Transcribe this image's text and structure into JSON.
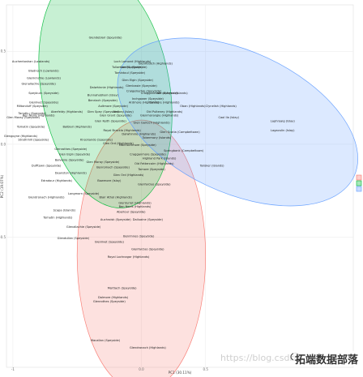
{
  "chart_data": {
    "type": "scatter",
    "xlabel": "PC1 (30.11%)",
    "ylabel": "PC2 (19.07%)",
    "xlim": [
      -1.05,
      1.65
    ],
    "ylim": [
      -1.2,
      0.75
    ],
    "x_ticks": [
      {
        "value": -1.0,
        "label": "-1"
      },
      {
        "value": 0.0,
        "label": "0.0"
      },
      {
        "value": 0.5,
        "label": "0.5"
      }
    ],
    "y_ticks": [
      {
        "value": 0.5,
        "label": "0.5"
      },
      {
        "value": 0.0,
        "label": "0.0"
      },
      {
        "value": -0.5,
        "label": "-0.5"
      }
    ],
    "grid": true,
    "legend_position": "right",
    "clusters": [
      {
        "id": "1",
        "color": "#F8766D",
        "fill": "#F8766D"
      },
      {
        "id": "2",
        "color": "#00BA38",
        "fill": "#00BA38"
      },
      {
        "id": "3",
        "color": "#619CFF",
        "fill": "#619CFF"
      }
    ],
    "ellipses": [
      {
        "cluster": "1",
        "cx": 0.0,
        "cy": -0.6,
        "rx": 0.5,
        "ry": 0.73,
        "angle": 0
      },
      {
        "cluster": "2",
        "cx": -0.28,
        "cy": 0.3,
        "rx": 0.5,
        "ry": 0.65,
        "angle": -10
      },
      {
        "cluster": "3",
        "cx": 0.75,
        "cy": 0.12,
        "rx": 1.0,
        "ry": 0.38,
        "angle": 25
      }
    ],
    "points": [
      {
        "name": "Glendeblair (Speyside)",
        "x": -0.28,
        "y": 0.57,
        "cluster": "2"
      },
      {
        "name": "Auchentoshan (Lowlands)",
        "x": -0.86,
        "y": 0.44,
        "cluster": "2"
      },
      {
        "name": "Loch Lomond (Highlands)",
        "x": -0.07,
        "y": 0.44,
        "cluster": "2"
      },
      {
        "name": "Glenfiddich (Highlands)",
        "x": 0.11,
        "y": 0.43,
        "cluster": "3"
      },
      {
        "name": "Tullamore (Speyside)",
        "x": -0.11,
        "y": 0.41,
        "cluster": "2"
      },
      {
        "name": "Bladnoch (Lowlands)",
        "x": -0.76,
        "y": 0.39,
        "cluster": "2"
      },
      {
        "name": "Cardhu (Speyside)",
        "x": -0.06,
        "y": 0.41,
        "cluster": "2"
      },
      {
        "name": "Tomintoul (Speyside)",
        "x": -0.09,
        "y": 0.38,
        "cluster": "2"
      },
      {
        "name": "Glenkinchie (Lowlands)",
        "x": -0.76,
        "y": 0.35,
        "cluster": "2"
      },
      {
        "name": "Glen Elgin (Speyside)",
        "x": -0.03,
        "y": 0.34,
        "cluster": "2"
      },
      {
        "name": "Glenallachie (Speyside)",
        "x": -0.8,
        "y": 0.32,
        "cluster": "2"
      },
      {
        "name": "Glenlossie (Speyside)",
        "x": 0.0,
        "y": 0.31,
        "cluster": "2"
      },
      {
        "name": "Dalwhinnie (Highlands)",
        "x": -0.27,
        "y": 0.3,
        "cluster": "2"
      },
      {
        "name": "Craigellachie (Speyside)",
        "x": 0.02,
        "y": 0.28,
        "cluster": "2"
      },
      {
        "name": "Isle of Arran (Islands)",
        "x": 0.24,
        "y": 0.27,
        "cluster": "3"
      },
      {
        "name": "Speyburn (Speyside)",
        "x": -0.76,
        "y": 0.27,
        "cluster": "2"
      },
      {
        "name": "Craigganmore (Speyside)",
        "x": 0.14,
        "y": 0.27,
        "cluster": "2"
      },
      {
        "name": "Bunnahabhain (Islay)",
        "x": -0.3,
        "y": 0.26,
        "cluster": "2"
      },
      {
        "name": "Benriach (Speyside)",
        "x": -0.3,
        "y": 0.23,
        "cluster": "2"
      },
      {
        "name": "Glenlivet (Speyside)",
        "x": -0.76,
        "y": 0.22,
        "cluster": "2"
      },
      {
        "name": "Inchgower (Speyside)",
        "x": 0.05,
        "y": 0.24,
        "cluster": "2"
      },
      {
        "name": "Ardmore (Highlands)",
        "x": 0.02,
        "y": 0.22,
        "cluster": "2"
      },
      {
        "name": "Dalmore (Highlands)",
        "x": 0.18,
        "y": 0.22,
        "cluster": "3"
      },
      {
        "name": "Miltonduff (Speyside)",
        "x": -0.85,
        "y": 0.2,
        "cluster": "2"
      },
      {
        "name": "Aultmore (Speyside)",
        "x": -0.22,
        "y": 0.2,
        "cluster": "2"
      },
      {
        "name": "Oban (Highlands)",
        "x": 0.4,
        "y": 0.2,
        "cluster": "3"
      },
      {
        "name": "Clynelish (Highlands)",
        "x": 0.62,
        "y": 0.2,
        "cluster": "3"
      },
      {
        "name": "Aberfeldy (Highlands)",
        "x": -0.58,
        "y": 0.17,
        "cluster": "2"
      },
      {
        "name": "Tamdhu (Speyside)",
        "x": -0.85,
        "y": 0.16,
        "cluster": "2"
      },
      {
        "name": "Glen Spey (Speyside)",
        "x": -0.3,
        "y": 0.17,
        "cluster": "2"
      },
      {
        "name": "Ardbeg (Islay)",
        "x": -0.14,
        "y": 0.17,
        "cluster": "2"
      },
      {
        "name": "Old Pulteney (Highlands)",
        "x": 0.18,
        "y": 0.17,
        "cluster": "3"
      },
      {
        "name": "Ben Nevis (Highlands)",
        "x": -0.8,
        "y": 0.15,
        "cluster": "2"
      },
      {
        "name": "Glen Grant (Speyside)",
        "x": -0.2,
        "y": 0.15,
        "cluster": "2"
      },
      {
        "name": "Glenmorangie (Highlands)",
        "x": 0.14,
        "y": 0.15,
        "cluster": "3"
      },
      {
        "name": "Caol Ila (Islay)",
        "x": 0.68,
        "y": 0.14,
        "cluster": "3"
      },
      {
        "name": "Glen Moray (Speyside)",
        "x": -0.92,
        "y": 0.14,
        "cluster": "2"
      },
      {
        "name": "Glen Keith (Speyside)",
        "x": -0.24,
        "y": 0.12,
        "cluster": "2"
      },
      {
        "name": "Glen Garioch (Highlands)",
        "x": 0.08,
        "y": 0.11,
        "cluster": "3"
      },
      {
        "name": "Tomatin (Speyside)",
        "x": -0.86,
        "y": 0.09,
        "cluster": "2"
      },
      {
        "name": "Balblair (Highlands)",
        "x": -0.5,
        "y": 0.09,
        "cluster": "2"
      },
      {
        "name": "Laphroaig (Islay)",
        "x": 1.1,
        "y": 0.12,
        "cluster": "3"
      },
      {
        "name": "Lagavulin (Islay)",
        "x": 1.1,
        "y": 0.07,
        "cluster": "3"
      },
      {
        "name": "Royal Brackla (Highlands)",
        "x": -0.15,
        "y": 0.07,
        "cluster": "2"
      },
      {
        "name": "Glengoyne (Highlands)",
        "x": -0.94,
        "y": 0.04,
        "cluster": "2"
      },
      {
        "name": "Dalwhinnie (Highlands)",
        "x": -0.02,
        "y": 0.05,
        "cluster": "3"
      },
      {
        "name": "Glen Scotia (Campbeltown)",
        "x": 0.3,
        "y": 0.06,
        "cluster": "3"
      },
      {
        "name": "Tobermory (Islands)",
        "x": 0.12,
        "y": 0.03,
        "cluster": "3"
      },
      {
        "name": "Strathmill (Speyside)",
        "x": -0.84,
        "y": 0.02,
        "cluster": "2"
      },
      {
        "name": "Knockando (Speyside)",
        "x": -0.35,
        "y": 0.02,
        "cluster": "2"
      },
      {
        "name": "Glen Ord (Highlands)",
        "x": -0.18,
        "y": 0.0,
        "cluster": "2"
      },
      {
        "name": "Mannochmore (Speyside)",
        "x": -0.03,
        "y": -0.01,
        "cluster": "1"
      },
      {
        "name": "Glenrothes (Speyside)",
        "x": -0.55,
        "y": -0.03,
        "cluster": "2"
      },
      {
        "name": "Springbank (Campbeltown)",
        "x": 0.33,
        "y": -0.04,
        "cluster": "3"
      },
      {
        "name": "Glen Elgin (Speyside)",
        "x": -0.52,
        "y": -0.06,
        "cluster": "1"
      },
      {
        "name": "Cragganmore (Speyside)",
        "x": 0.05,
        "y": -0.06,
        "cluster": "1"
      },
      {
        "name": "Highland Park (Islands)",
        "x": 0.14,
        "y": -0.08,
        "cluster": "3"
      },
      {
        "name": "Balvenie (Speyside)",
        "x": -0.56,
        "y": -0.09,
        "cluster": "1"
      },
      {
        "name": "Glen Moray (Speyside)",
        "x": -0.3,
        "y": -0.1,
        "cluster": "1"
      },
      {
        "name": "Old Fettercairn (Highlands)",
        "x": 0.1,
        "y": -0.11,
        "cluster": "1"
      },
      {
        "name": "Dufftown (Speyside)",
        "x": -0.74,
        "y": -0.12,
        "cluster": "1"
      },
      {
        "name": "Benromach (Speyside)",
        "x": -0.22,
        "y": -0.13,
        "cluster": "1"
      },
      {
        "name": "Talisker (Islands)",
        "x": 0.55,
        "y": -0.12,
        "cluster": "3"
      },
      {
        "name": "Tomore (Speyside)",
        "x": 0.08,
        "y": -0.14,
        "cluster": "1"
      },
      {
        "name": "Deanston (Highlands)",
        "x": -0.55,
        "y": -0.16,
        "cluster": "1"
      },
      {
        "name": "Glen Ord (Highlands)",
        "x": -0.1,
        "y": -0.17,
        "cluster": "1"
      },
      {
        "name": "Edradour (Highlands)",
        "x": -0.66,
        "y": -0.2,
        "cluster": "1"
      },
      {
        "name": "Bowmore (Islay)",
        "x": -0.25,
        "y": -0.2,
        "cluster": "1"
      },
      {
        "name": "Glenfarclas (Speyside)",
        "x": 0.1,
        "y": -0.22,
        "cluster": "1"
      },
      {
        "name": "Longmorn (Speyside)",
        "x": -0.45,
        "y": -0.27,
        "cluster": "1"
      },
      {
        "name": "Glendronach (Highlands)",
        "x": -0.74,
        "y": -0.29,
        "cluster": "1"
      },
      {
        "name": "Blair Athol (Highlands)",
        "x": -0.2,
        "y": -0.29,
        "cluster": "1"
      },
      {
        "name": "Glenturret (Highlands)",
        "x": -0.05,
        "y": -0.32,
        "cluster": "1"
      },
      {
        "name": "Ben Nevis (Highlands)",
        "x": -0.05,
        "y": -0.34,
        "cluster": "1"
      },
      {
        "name": "Scapa (Islands)",
        "x": -0.6,
        "y": -0.36,
        "cluster": "1"
      },
      {
        "name": "Aberlour (Speyside)",
        "x": -0.08,
        "y": -0.37,
        "cluster": "1"
      },
      {
        "name": "Tomatin (Highlands)",
        "x": -0.65,
        "y": -0.4,
        "cluster": "1"
      },
      {
        "name": "Auchroisk (Speyside)",
        "x": -0.2,
        "y": -0.41,
        "cluster": "1"
      },
      {
        "name": "Dailuaine (Speyside)",
        "x": 0.05,
        "y": -0.41,
        "cluster": "1"
      },
      {
        "name": "Glenallachie (Speyside)",
        "x": -0.45,
        "y": -0.45,
        "cluster": "1"
      },
      {
        "name": "Benrinnes (Speyside)",
        "x": -0.02,
        "y": -0.5,
        "cluster": "1"
      },
      {
        "name": "Glendullan (Speyside)",
        "x": -0.53,
        "y": -0.51,
        "cluster": "1"
      },
      {
        "name": "Glenlivet (Speyside)",
        "x": -0.25,
        "y": -0.53,
        "cluster": "1"
      },
      {
        "name": "Glenfarclas (Speyside)",
        "x": 0.05,
        "y": -0.57,
        "cluster": "1"
      },
      {
        "name": "Royal Lochnagar (Highlands)",
        "x": -0.1,
        "y": -0.61,
        "cluster": "1"
      },
      {
        "name": "Mortlach (Speyside)",
        "x": -0.15,
        "y": -0.78,
        "cluster": "1"
      },
      {
        "name": "Dalmore (Highlands)",
        "x": -0.22,
        "y": -0.83,
        "cluster": "1"
      },
      {
        "name": "Glenrothes (Speyside)",
        "x": -0.25,
        "y": -0.85,
        "cluster": "1"
      },
      {
        "name": "Macallan (Speyside)",
        "x": -0.28,
        "y": -1.06,
        "cluster": "1"
      },
      {
        "name": "Glendronach (Highlands)",
        "x": 0.05,
        "y": -1.1,
        "cluster": "1"
      }
    ]
  },
  "watermark": {
    "url": "https://blog.csdn.net/",
    "name": "拓端数据部落"
  }
}
